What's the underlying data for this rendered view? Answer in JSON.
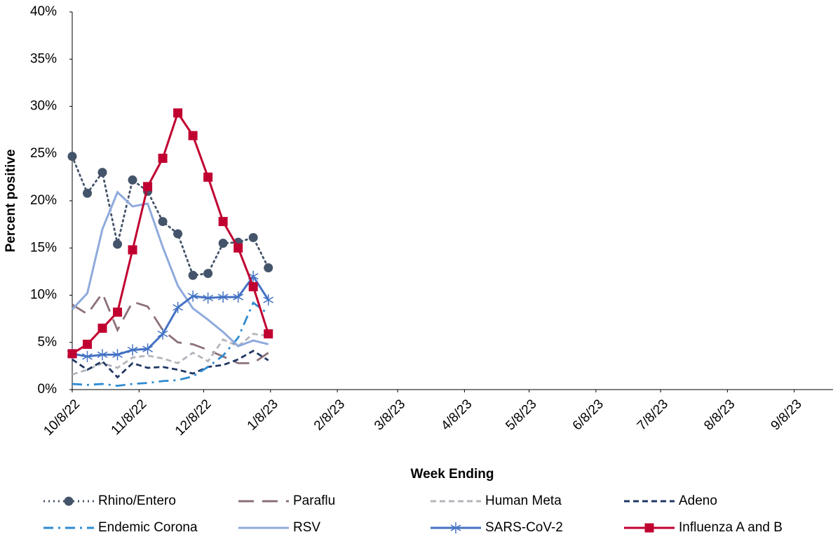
{
  "chart_data": {
    "type": "line",
    "x_label": "Week Ending",
    "y_label": "Percent positive",
    "x": [
      "10/8/22",
      "10/15/22",
      "10/22/22",
      "10/29/22",
      "11/5/22",
      "11/12/22",
      "11/19/22",
      "11/26/22",
      "12/3/22",
      "12/10/22",
      "12/17/22",
      "12/24/22",
      "12/31/22",
      "1/7/23"
    ],
    "xlim": [
      "10/8/22",
      "9/26/23"
    ],
    "xticks": [
      "10/8/22",
      "11/8/22",
      "12/8/22",
      "1/8/23",
      "2/8/23",
      "3/8/23",
      "4/8/23",
      "5/8/23",
      "6/8/23",
      "7/8/23",
      "8/8/23",
      "9/8/23"
    ],
    "ylim": [
      0,
      40
    ],
    "yticks": [
      {
        "value": 0,
        "label": "0%"
      },
      {
        "value": 5,
        "label": "5%"
      },
      {
        "value": 10,
        "label": "10%"
      },
      {
        "value": 15,
        "label": "15%"
      },
      {
        "value": 20,
        "label": "20%"
      },
      {
        "value": 25,
        "label": "25%"
      },
      {
        "value": 30,
        "label": "30%"
      },
      {
        "value": 35,
        "label": "35%"
      },
      {
        "value": 40,
        "label": "40%"
      }
    ],
    "series": [
      {
        "name": "Rhino/Entero",
        "color": "#44546a",
        "dash": "dot",
        "marker": "circle",
        "values": [
          24.7,
          20.8,
          23.0,
          15.4,
          22.2,
          21.0,
          17.8,
          16.5,
          12.1,
          12.3,
          15.5,
          15.6,
          16.1,
          12.9
        ]
      },
      {
        "name": "Paraflu",
        "color": "#8c7078",
        "dash": "longdash",
        "values": [
          9.0,
          8.0,
          10.2,
          6.3,
          9.3,
          8.8,
          6.3,
          5.0,
          4.8,
          4.2,
          3.5,
          2.8,
          2.8,
          3.9
        ]
      },
      {
        "name": "Human Meta",
        "color": "#b4b4bc",
        "dash": "dash",
        "values": [
          1.6,
          2.1,
          2.8,
          2.3,
          3.4,
          3.6,
          3.3,
          2.8,
          3.9,
          3.0,
          5.3,
          4.6,
          5.9,
          5.7
        ]
      },
      {
        "name": "Adeno",
        "color": "#203864",
        "dash": "dash",
        "values": [
          3.2,
          2.1,
          3.0,
          1.3,
          2.8,
          2.3,
          2.4,
          2.1,
          1.7,
          2.4,
          2.6,
          3.2,
          4.1,
          3.1
        ]
      },
      {
        "name": "Endemic Corona",
        "color": "#2e8bd0",
        "dash": "dashdot",
        "values": [
          0.6,
          0.5,
          0.6,
          0.4,
          0.6,
          0.7,
          0.9,
          1.0,
          1.4,
          2.4,
          3.6,
          5.5,
          9.2,
          8.0
        ]
      },
      {
        "name": "RSV",
        "color": "#8faadc",
        "dash": "solid",
        "values": [
          8.5,
          10.2,
          17.0,
          20.9,
          19.4,
          19.7,
          15.1,
          11.0,
          8.6,
          7.4,
          6.1,
          4.6,
          5.2,
          4.8
        ]
      },
      {
        "name": "SARS-CoV-2",
        "color": "#4472c4",
        "dash": "solid",
        "marker": "asterisk",
        "values": [
          3.8,
          3.5,
          3.7,
          3.7,
          4.2,
          4.3,
          5.9,
          8.7,
          9.9,
          9.7,
          9.8,
          9.8,
          12.0,
          9.5
        ]
      },
      {
        "name": "Influenza A and B",
        "color": "#c00030",
        "dash": "solid",
        "marker": "square",
        "values": [
          3.8,
          4.8,
          6.5,
          8.2,
          14.8,
          21.5,
          24.5,
          29.3,
          26.9,
          22.5,
          17.8,
          15.0,
          10.9,
          5.9
        ]
      }
    ]
  }
}
